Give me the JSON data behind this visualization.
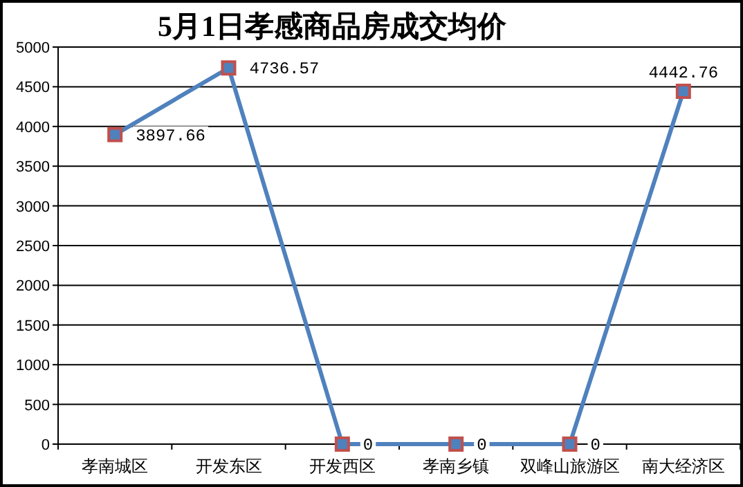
{
  "chart_data": {
    "type": "line",
    "title": "5月1日孝感商品房成交均价",
    "categories": [
      "孝南城区",
      "开发东区",
      "开发西区",
      "孝南乡镇",
      "双峰山旅游区",
      "南大经济区"
    ],
    "series": [
      {
        "color": "#4f81bd",
        "values": [
          3897.66,
          4736.57,
          0,
          0,
          0,
          4442.76
        ]
      }
    ],
    "marker": "square",
    "line_style": "solid",
    "data_labels": true,
    "ylim": [
      0,
      5000
    ],
    "yticks": [
      0,
      500,
      1000,
      1500,
      2000,
      2500,
      3000,
      3500,
      4000,
      4500,
      5000
    ],
    "grid": "y"
  }
}
